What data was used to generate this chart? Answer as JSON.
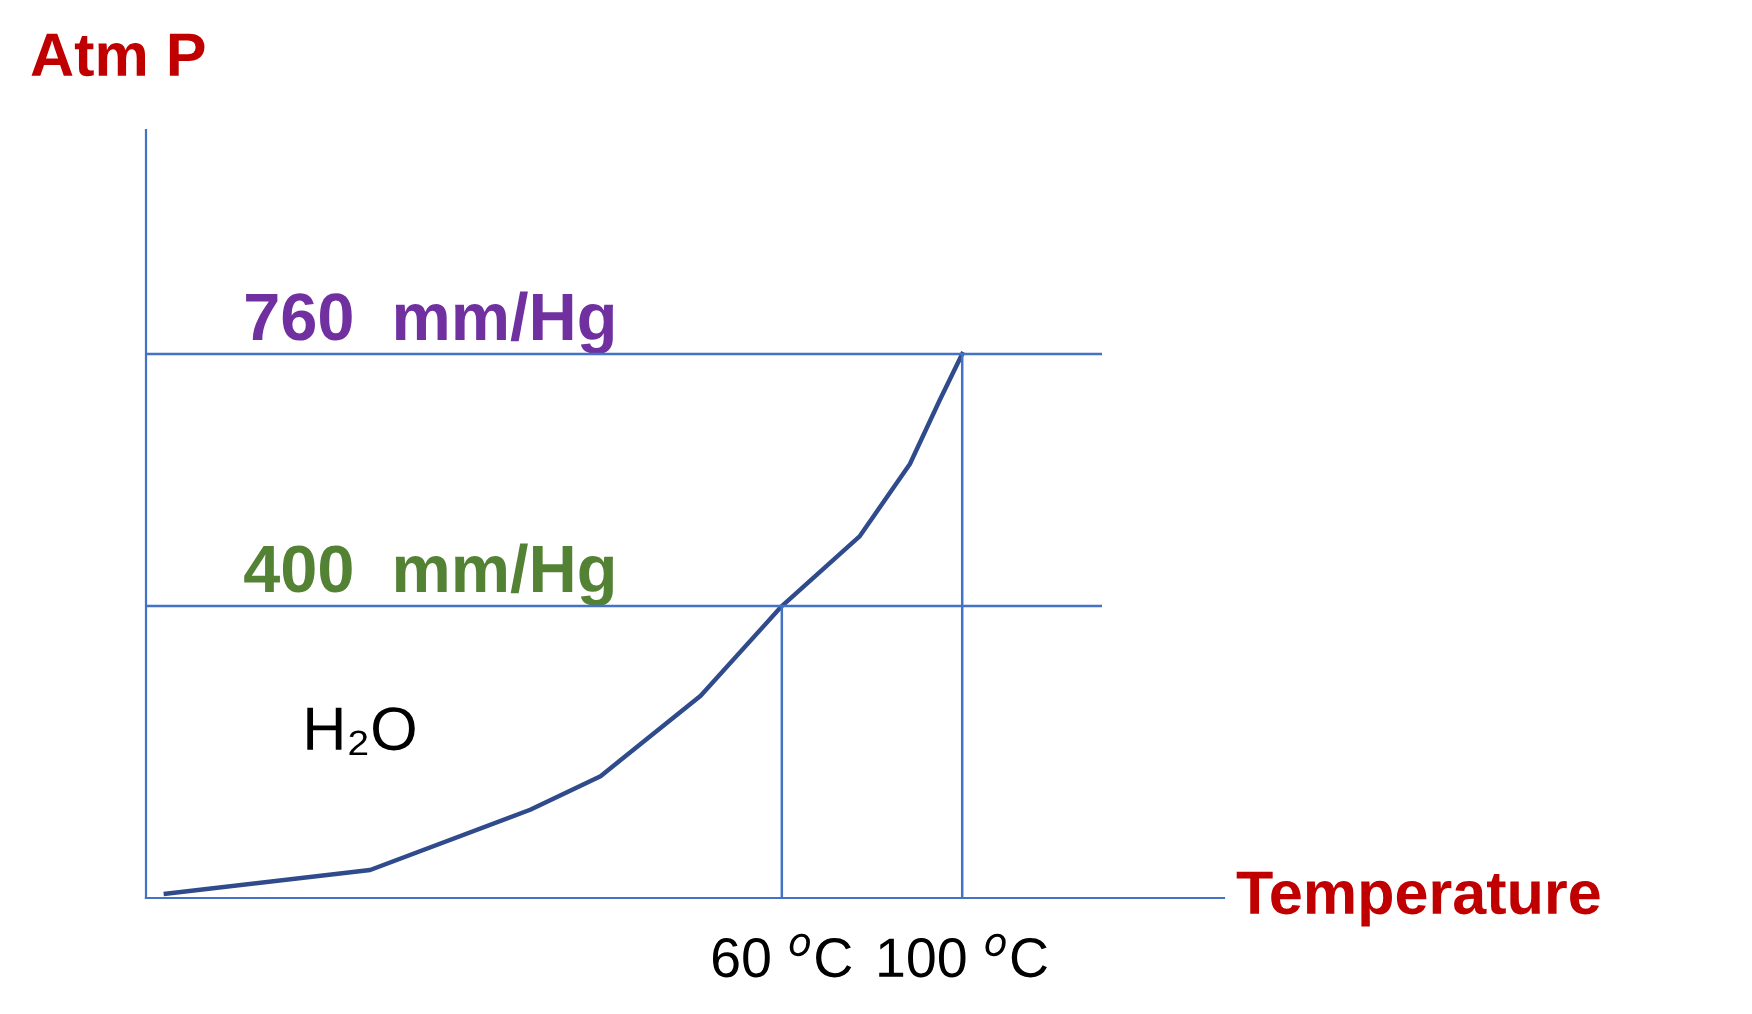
{
  "chart_data": {
    "type": "line",
    "ylabel": "Atm P",
    "xlabel": "Temperature",
    "x": [
      -76.6,
      -31.3,
      4.2,
      19.8,
      42,
      60,
      77.3,
      88.4,
      95,
      100
    ],
    "series": [
      {
        "color": "#2f4b8c",
        "values": [
          -11,
          23,
          109,
          157,
          272,
          400,
          500,
          603,
          694,
          760
        ]
      }
    ],
    "xlim": [
      -81,
      131
    ],
    "ylim": [
      -17,
      1080
    ],
    "xticks": [
      {
        "value": 60,
        "label": "60 $^{o}$C"
      },
      {
        "value": 100,
        "label": "100 $^{o}$C"
      }
    ],
    "yticks": [
      {
        "value": 400,
        "label": "400  mm/Hg"
      },
      {
        "value": 760,
        "label": "760  mm/Hg"
      }
    ],
    "grid": false,
    "legend": false,
    "marker": "none",
    "line_style": "solid",
    "ref_lines": [
      {
        "axis": "y",
        "value": 760,
        "label": null,
        "color": "#4472c4"
      },
      {
        "axis": "y",
        "value": 400,
        "label": null,
        "color": "#4472c4"
      },
      {
        "axis": "x",
        "value": 60,
        "label": null
      },
      {
        "axis": "x",
        "value": 100,
        "label": null
      }
    ],
    "annotations": [
      "H₂O"
    ]
  }
}
